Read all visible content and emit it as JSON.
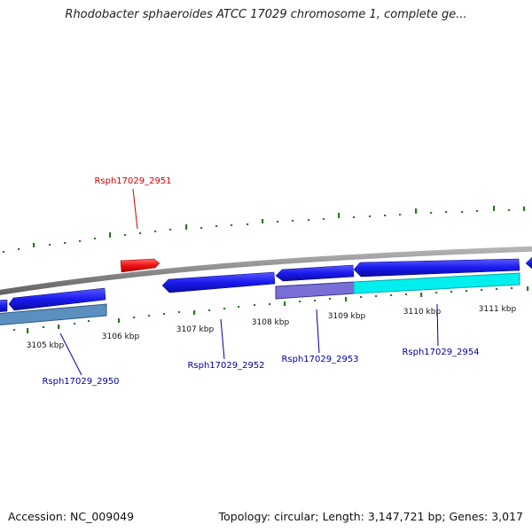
{
  "title": "Rhodobacter sphaeroides ATCC 17029 chromosome 1, complete ge...",
  "accession": "Accession: NC_009049",
  "topology": "Topology: circular; Length: 3,147,721 bp; Genes: 3,017",
  "ticks": [
    {
      "label": "3105 kbp"
    },
    {
      "label": "3106 kbp"
    },
    {
      "label": "3107 kbp"
    },
    {
      "label": "3108 kbp"
    },
    {
      "label": "3109 kbp"
    },
    {
      "label": "3110 kbp"
    },
    {
      "label": "3111 kbp"
    }
  ],
  "gene_labels": [
    {
      "text": "Rsph17029_2951",
      "color": "#cc0000"
    },
    {
      "text": "Rsph17029_2950",
      "color": "#000099"
    },
    {
      "text": "Rsph17029_2952",
      "color": "#000099"
    },
    {
      "text": "Rsph17029_2953",
      "color": "#000099"
    },
    {
      "text": "Rsph17029_2954",
      "color": "#000099"
    }
  ],
  "colors": {
    "gene_forward": "#ee1111",
    "gene_reverse": "#1a1aee",
    "cds_lavender": "#7a6fd6",
    "cds_steel": "#5b8fbf",
    "cds_cyan": "#00eeee",
    "backbone": "#8a8a8a",
    "gc_ticks": "#2a7a1e"
  }
}
